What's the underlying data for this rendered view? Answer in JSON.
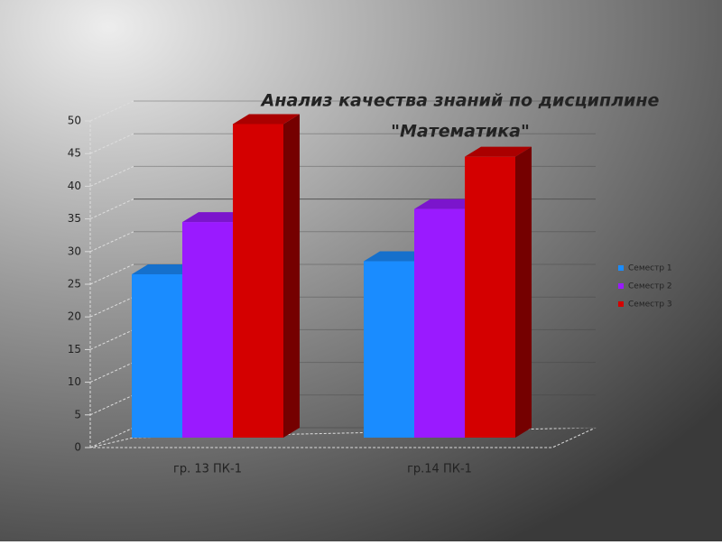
{
  "chart_data": {
    "type": "bar3d",
    "title": [
      "Анализ качества знаний по дисциплине",
      "\"Математика\""
    ],
    "categories": [
      "гр. 13 ПК-1",
      "гр.14 ПК-1"
    ],
    "series": [
      {
        "name": "Семестр 1",
        "color": "#1a8cff",
        "values": [
          25,
          27
        ]
      },
      {
        "name": "Семестр 2",
        "color": "#9a1aff",
        "values": [
          33,
          35
        ]
      },
      {
        "name": "Семестр 3",
        "color": "#d40000",
        "values": [
          48,
          43
        ]
      }
    ],
    "ylim": [
      0,
      50
    ],
    "yticks": [
      0,
      5,
      10,
      15,
      20,
      25,
      30,
      35,
      40,
      45,
      50
    ],
    "grid": true,
    "legend": "right"
  }
}
